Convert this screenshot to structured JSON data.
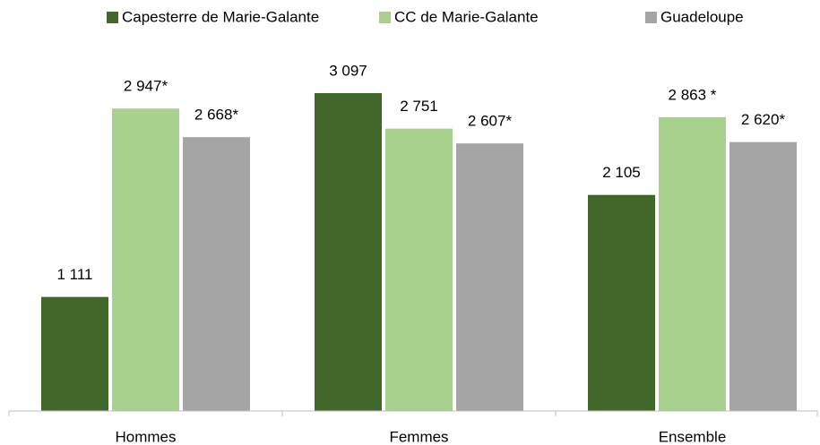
{
  "chart_data": {
    "type": "bar",
    "categories": [
      "Hommes",
      "Femmes",
      "Ensemble"
    ],
    "series": [
      {
        "name": "Capesterre de Marie-Galante",
        "color": "#41672a",
        "values": [
          1111,
          3097,
          2105
        ],
        "value_labels": [
          "1 111",
          "3 097",
          "2 105"
        ]
      },
      {
        "name": "CC de Marie-Galante",
        "color": "#a9d18e",
        "values": [
          2947,
          2751,
          2863
        ],
        "value_labels": [
          "2 947*",
          "2 751",
          "2 863 *"
        ]
      },
      {
        "name": "Guadeloupe",
        "color": "#a5a5a5",
        "values": [
          2668,
          2607,
          2620
        ],
        "value_labels": [
          "2 668*",
          "2 607*",
          "2 620*"
        ]
      }
    ],
    "legend": "top"
  }
}
